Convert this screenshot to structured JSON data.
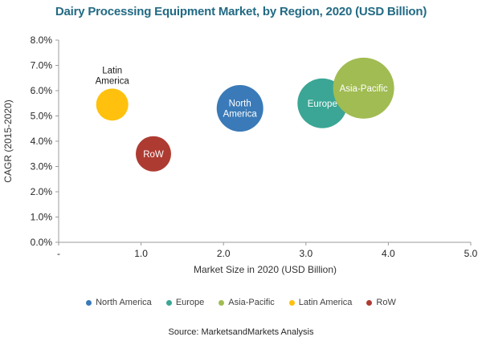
{
  "source_note": "Source: MarketsandMarkets Analysis",
  "colors": {
    "title": "#226A84",
    "axis_line": "#9B9B9B",
    "tick_text": "#262626",
    "axis_title_text": "#333333",
    "legend_text": "#404040",
    "background": "#FFFFFF"
  },
  "chart_data": {
    "type": "scatter",
    "subtype": "bubble",
    "title": "Dairy Processing Equipment Market, by Region, 2020 (USD Billion)",
    "xlabel": "Market Size in 2020 (USD Billion)",
    "ylabel": "CAGR (2015-2020)",
    "xlim": [
      0,
      5
    ],
    "ylim": [
      0,
      8
    ],
    "grid": false,
    "legend_position": "bottom",
    "x_ticks": {
      "values": [
        0,
        1,
        2,
        3,
        4,
        5
      ],
      "labels": [
        "-",
        "1.0",
        "2.0",
        "3.0",
        "4.0",
        "5.0"
      ]
    },
    "y_ticks": {
      "values": [
        0,
        1,
        2,
        3,
        4,
        5,
        6,
        7,
        8
      ],
      "labels": [
        "0.0%",
        "1.0%",
        "2.0%",
        "3.0%",
        "4.0%",
        "5.0%",
        "6.0%",
        "7.0%",
        "8.0%"
      ]
    },
    "series": [
      {
        "name": "North America",
        "x": 2.2,
        "y": 5.3,
        "radius_px": 29,
        "color": "#3A7AB8",
        "label_lines": [
          "North",
          "America"
        ],
        "label_inside": true,
        "label_color": "#FFFFFF"
      },
      {
        "name": "Europe",
        "x": 3.2,
        "y": 5.5,
        "radius_px": 31,
        "color": "#3BA695",
        "label_lines": [
          "Europe"
        ],
        "label_inside": true,
        "label_color": "#FFFFFF"
      },
      {
        "name": "Asia-Pacific",
        "x": 3.7,
        "y": 6.1,
        "radius_px": 38,
        "color": "#A1BC52",
        "label_lines": [
          "Asia-Pacific"
        ],
        "label_inside": true,
        "label_color": "#FFFFFF"
      },
      {
        "name": "Latin America",
        "x": 0.65,
        "y": 5.45,
        "radius_px": 20,
        "color": "#FFC10E",
        "label_lines": [
          "Latin",
          "America"
        ],
        "label_inside": false,
        "label_color": "#1A1A1A"
      },
      {
        "name": "RoW",
        "x": 1.15,
        "y": 3.5,
        "radius_px": 22,
        "color": "#AE3B32",
        "label_lines": [
          "RoW"
        ],
        "label_inside": true,
        "label_color": "#FFFFFF"
      }
    ],
    "legend": [
      "North America",
      "Europe",
      "Asia-Pacific",
      "Latin America",
      "RoW"
    ]
  }
}
